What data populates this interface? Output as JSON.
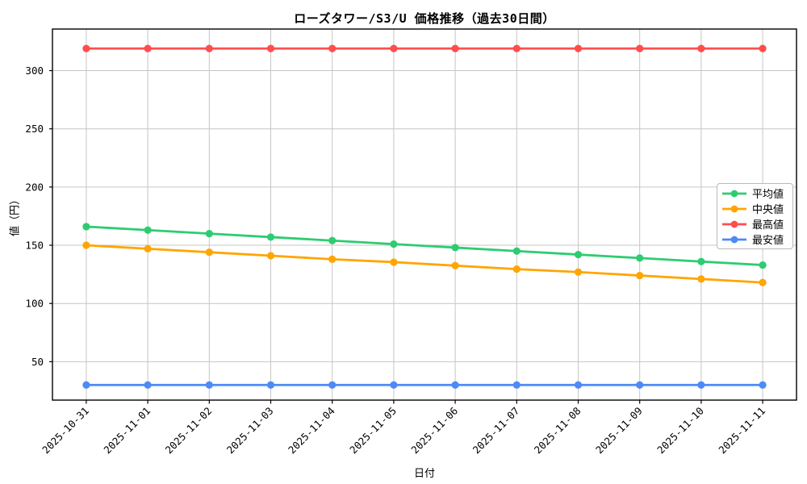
{
  "chart_data": {
    "type": "line",
    "title": "ローズタワー/S3/U 価格推移（過去30日間）",
    "xlabel": "日付",
    "ylabel": "値（円）",
    "categories": [
      "2025-10-31",
      "2025-11-01",
      "2025-11-02",
      "2025-11-03",
      "2025-11-04",
      "2025-11-05",
      "2025-11-06",
      "2025-11-07",
      "2025-11-08",
      "2025-11-09",
      "2025-11-10",
      "2025-11-11"
    ],
    "series": [
      {
        "name": "平均値",
        "key": "mean",
        "color": "#2ecc71",
        "values": [
          166,
          163,
          160,
          157,
          154,
          151,
          148,
          145,
          142,
          139,
          136,
          133
        ]
      },
      {
        "name": "中央値",
        "key": "median",
        "color": "#ffa502",
        "values": [
          150,
          147,
          144,
          141,
          138,
          135.5,
          132.5,
          129.5,
          127,
          124,
          121,
          118
        ]
      },
      {
        "name": "最高値",
        "key": "highest",
        "color": "#ff4d4d",
        "values": [
          319,
          319,
          319,
          319,
          319,
          319,
          319,
          319,
          319,
          319,
          319,
          319
        ]
      },
      {
        "name": "最安値",
        "key": "lowest",
        "color": "#4d8af5",
        "values": [
          30,
          30,
          30,
          30,
          30,
          30,
          30,
          30,
          30,
          30,
          30,
          30
        ]
      }
    ],
    "yticks": [
      50,
      100,
      150,
      200,
      250,
      300
    ],
    "ylim": [
      17.0,
      335.7
    ],
    "grid": true,
    "grid_color": "#c6c6c6",
    "axis_color": "#000000",
    "legend_position": "center right"
  }
}
